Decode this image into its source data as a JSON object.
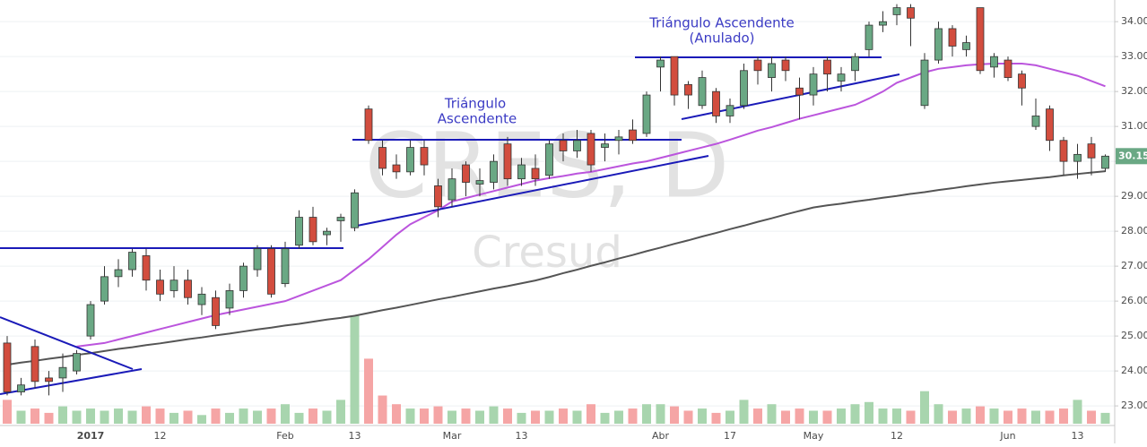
{
  "chart_data": {
    "type": "candlestick",
    "watermark": "CRES, D",
    "watermark_subtitle": "Cresud",
    "annotations": [
      "Triángulo",
      "Ascendente",
      "Triángulo Ascendente",
      "(Anulado)"
    ],
    "categories": [
      null,
      null,
      null,
      null,
      null,
      null,
      "2017",
      null,
      null,
      null,
      null,
      "12",
      null,
      null,
      null,
      null,
      null,
      null,
      null,
      null,
      "Feb",
      null,
      null,
      null,
      null,
      "13",
      null,
      null,
      null,
      null,
      null,
      null,
      "Mar",
      null,
      null,
      null,
      null,
      "13",
      null,
      null,
      null,
      null,
      null,
      null,
      null,
      null,
      null,
      "Abr",
      null,
      null,
      null,
      null,
      "17",
      null,
      null,
      null,
      null,
      null,
      "May",
      null,
      null,
      null,
      null,
      null,
      "12",
      null,
      null,
      null,
      null,
      null,
      null,
      null,
      "Jun",
      null,
      null,
      null,
      null,
      "13",
      null,
      null
    ],
    "open": [
      24.8,
      23.4,
      24.7,
      23.8,
      23.8,
      24.0,
      25.0,
      26.0,
      26.7,
      26.9,
      27.3,
      26.6,
      26.3,
      26.6,
      25.9,
      26.1,
      25.8,
      26.3,
      26.9,
      27.5,
      26.5,
      27.6,
      28.4,
      27.9,
      28.3,
      28.1,
      31.5,
      30.4,
      29.9,
      29.7,
      30.4,
      29.3,
      28.9,
      29.9,
      29.35,
      29.4,
      30.5,
      29.5,
      29.8,
      29.6,
      30.6,
      30.3,
      30.8,
      30.4,
      30.6,
      30.9,
      30.8,
      32.7,
      33.0,
      32.2,
      31.6,
      32.0,
      31.3,
      31.6,
      32.9,
      32.4,
      32.9,
      32.1,
      31.9,
      32.9,
      32.3,
      32.6,
      33.2,
      33.9,
      34.2,
      34.4,
      31.6,
      32.9,
      33.8,
      33.2,
      34.4,
      32.7,
      32.9,
      32.5,
      31.0,
      31.5,
      30.6,
      30.0,
      30.5,
      29.8
    ],
    "high": [
      25.0,
      23.8,
      24.9,
      24.0,
      24.5,
      24.6,
      26.0,
      27.0,
      27.2,
      27.5,
      27.5,
      26.9,
      27.0,
      26.9,
      26.4,
      26.3,
      26.5,
      27.1,
      27.6,
      27.6,
      27.7,
      28.6,
      28.7,
      28.1,
      28.5,
      29.2,
      31.6,
      30.6,
      30.2,
      30.6,
      30.6,
      29.5,
      29.8,
      30.0,
      29.8,
      30.2,
      30.7,
      30.1,
      30.2,
      30.6,
      30.8,
      30.9,
      30.9,
      30.8,
      30.9,
      31.2,
      32.0,
      33.0,
      33.0,
      32.3,
      32.6,
      32.1,
      31.8,
      32.8,
      33.0,
      33.0,
      33.0,
      32.4,
      32.7,
      33.0,
      32.7,
      33.1,
      34.0,
      34.3,
      34.5,
      34.5,
      33.1,
      34.0,
      33.9,
      33.6,
      34.4,
      33.1,
      33.0,
      32.6,
      31.8,
      31.6,
      30.7,
      30.5,
      30.7,
      30.2
    ],
    "low": [
      23.3,
      23.3,
      23.5,
      23.3,
      23.4,
      23.9,
      24.9,
      25.9,
      26.4,
      26.7,
      26.3,
      26.0,
      26.1,
      25.9,
      25.6,
      25.2,
      25.6,
      26.1,
      26.7,
      26.1,
      26.4,
      27.5,
      27.6,
      27.6,
      27.7,
      28.0,
      30.5,
      29.6,
      29.5,
      29.6,
      29.6,
      28.4,
      28.7,
      29.0,
      29.0,
      29.2,
      29.3,
      29.3,
      29.3,
      29.5,
      30.0,
      30.1,
      29.7,
      30.0,
      30.2,
      30.5,
      30.7,
      32.0,
      31.6,
      31.5,
      31.5,
      31.1,
      31.1,
      31.5,
      32.2,
      32.0,
      32.3,
      31.2,
      31.6,
      32.0,
      32.0,
      32.3,
      33.0,
      33.7,
      33.9,
      33.3,
      31.5,
      32.8,
      33.0,
      33.0,
      32.5,
      32.4,
      32.3,
      31.6,
      30.9,
      30.3,
      29.6,
      29.5,
      29.6,
      29.7
    ],
    "close": [
      23.4,
      23.6,
      23.7,
      23.7,
      24.1,
      24.5,
      25.9,
      26.7,
      26.9,
      27.4,
      26.6,
      26.2,
      26.6,
      26.1,
      26.2,
      25.3,
      26.3,
      27.0,
      27.5,
      26.2,
      27.5,
      28.4,
      27.7,
      28.0,
      28.4,
      29.1,
      30.6,
      29.8,
      29.7,
      30.4,
      29.9,
      28.7,
      29.5,
      29.4,
      29.45,
      30.0,
      29.5,
      29.9,
      29.5,
      30.5,
      30.3,
      30.6,
      29.9,
      30.5,
      30.7,
      30.6,
      31.9,
      32.9,
      31.9,
      31.9,
      32.4,
      31.3,
      31.6,
      32.6,
      32.6,
      32.8,
      32.6,
      31.9,
      32.5,
      32.5,
      32.5,
      33.0,
      33.9,
      34.0,
      34.4,
      34.1,
      32.9,
      33.8,
      33.3,
      33.4,
      32.6,
      33.0,
      32.4,
      32.1,
      31.3,
      30.6,
      30.0,
      30.2,
      30.1,
      30.15
    ],
    "volume": [
      22,
      12,
      14,
      10,
      16,
      12,
      14,
      12,
      14,
      12,
      16,
      14,
      10,
      12,
      8,
      14,
      10,
      14,
      12,
      14,
      18,
      10,
      14,
      12,
      22,
      100,
      60,
      26,
      18,
      14,
      14,
      16,
      12,
      14,
      12,
      16,
      14,
      10,
      12,
      12,
      14,
      12,
      18,
      10,
      12,
      14,
      18,
      18,
      16,
      12,
      14,
      10,
      12,
      22,
      14,
      18,
      12,
      14,
      12,
      12,
      14,
      18,
      20,
      14,
      14,
      12,
      30,
      18,
      12,
      14,
      16,
      14,
      12,
      14,
      12,
      12,
      14,
      22,
      12,
      10
    ],
    "moving_averages": [
      {
        "color": "#bb55dd",
        "values": [
          null,
          null,
          null,
          null,
          null,
          24.7,
          24.75,
          24.8,
          24.9,
          25.0,
          25.1,
          25.2,
          25.3,
          25.4,
          25.5,
          25.6,
          25.68,
          25.76,
          25.84,
          25.92,
          26.0,
          26.15,
          26.3,
          26.45,
          26.6,
          26.9,
          27.2,
          27.55,
          27.9,
          28.2,
          28.4,
          28.6,
          28.85,
          28.95,
          29.05,
          29.15,
          29.25,
          29.35,
          29.45,
          29.52,
          29.58,
          29.65,
          29.7,
          29.78,
          29.86,
          29.94,
          30.0,
          30.1,
          30.2,
          30.3,
          30.4,
          30.5,
          30.62,
          30.75,
          30.88,
          30.98,
          31.1,
          31.22,
          31.32,
          31.42,
          31.52,
          31.62,
          31.8,
          32.0,
          32.25,
          32.4,
          32.55,
          32.65,
          32.7,
          32.75,
          32.78,
          32.8,
          32.8,
          32.8,
          32.75,
          32.65,
          32.55,
          32.45,
          32.3,
          32.15
        ]
      },
      {
        "color": "#555555",
        "values": [
          24.18,
          24.24,
          24.29,
          24.35,
          24.4,
          24.46,
          24.51,
          24.57,
          24.63,
          24.68,
          24.74,
          24.79,
          24.85,
          24.91,
          24.96,
          25.02,
          25.07,
          25.13,
          25.19,
          25.24,
          25.3,
          25.35,
          25.41,
          25.47,
          25.52,
          25.58,
          25.66,
          25.74,
          25.81,
          25.89,
          25.97,
          26.05,
          26.12,
          26.2,
          26.28,
          26.36,
          26.43,
          26.51,
          26.59,
          26.69,
          26.8,
          26.9,
          27.01,
          27.11,
          27.22,
          27.32,
          27.43,
          27.53,
          27.64,
          27.74,
          27.85,
          27.95,
          28.06,
          28.16,
          28.27,
          28.37,
          28.48,
          28.58,
          28.68,
          28.74,
          28.79,
          28.85,
          28.9,
          28.96,
          29.01,
          29.07,
          29.12,
          29.18,
          29.23,
          29.29,
          29.34,
          29.39,
          29.43,
          29.47,
          29.51,
          29.55,
          29.6,
          29.64,
          29.68,
          29.72
        ]
      }
    ],
    "up_color": "#6aa884",
    "down_color": "#d24d3e",
    "volume_up_color": "#a8d5ae",
    "volume_down_color": "#f5a5a5",
    "ylim": [
      22.49,
      34.62
    ],
    "yticks": [
      {
        "value": 23,
        "label": "23.00"
      },
      {
        "value": 24,
        "label": "24.00"
      },
      {
        "value": 25,
        "label": "25.00"
      },
      {
        "value": 26,
        "label": "26.00"
      },
      {
        "value": 27,
        "label": "27.00"
      },
      {
        "value": 28,
        "label": "28.00"
      },
      {
        "value": 29,
        "label": "29.00"
      },
      {
        "value": 30,
        "label": "30.00"
      },
      {
        "value": 31,
        "label": "31.00"
      },
      {
        "value": 32,
        "label": "32.00"
      },
      {
        "value": 33,
        "label": "33.00"
      },
      {
        "value": 34,
        "label": "34.00"
      }
    ],
    "grid": true
  }
}
